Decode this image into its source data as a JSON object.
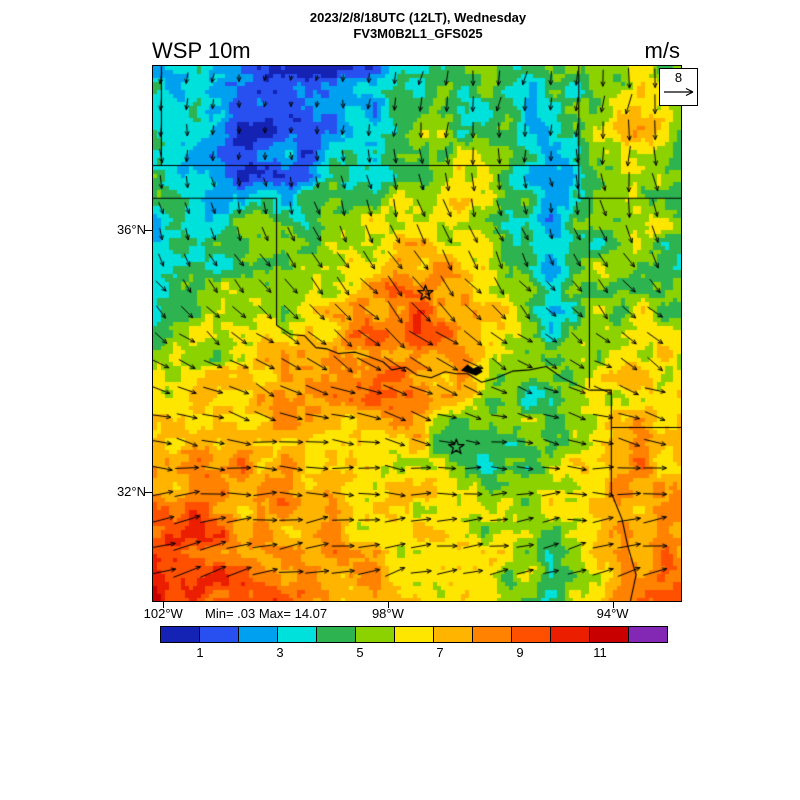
{
  "header": {
    "title_line1": "2023/2/8/18UTC (12LT), Wednesday",
    "title_line2": "FV3M0B2L1_GFS025",
    "field_label": "WSP 10m",
    "units_label": "m/s"
  },
  "plot": {
    "reference_arrow_label": "8"
  },
  "stats_label": "Min= .03 Max= 14.07",
  "axes": {
    "lat_ticks": [
      {
        "label": "36°N",
        "lat": 36
      },
      {
        "label": "32°N",
        "lat": 32
      }
    ],
    "lon_ticks": [
      {
        "label": "102°W",
        "lon": -102
      },
      {
        "label": "98°W",
        "lon": -98
      },
      {
        "label": "94°W",
        "lon": -94
      }
    ]
  },
  "colorbar": {
    "tick_labels": [
      "1",
      "3",
      "5",
      "7",
      "9",
      "11"
    ]
  },
  "chart_data": {
    "type": "heatmap",
    "variable": "wind speed at 10 m",
    "units": "m/s",
    "valid_time": "2023/2/8/18UTC (12LT), Wednesday",
    "model": "FV3M0B2L1_GFS025",
    "min": 0.03,
    "max": 14.07,
    "reference_vector_ms": 8,
    "lon_range": [
      -102.2,
      -92.8
    ],
    "lat_range": [
      30.35,
      38.52
    ],
    "contour_levels": [
      1,
      2,
      3,
      4,
      5,
      6,
      7,
      8,
      9,
      10,
      11,
      12
    ],
    "colors": [
      "#1423b4",
      "#2850f0",
      "#00a0f0",
      "#00e1dc",
      "#2db450",
      "#8cd200",
      "#ffe600",
      "#ffb400",
      "#ff8200",
      "#ff5000",
      "#eb1e00",
      "#c80000",
      "#8228b4"
    ],
    "speed_grid": {
      "values": [
        [
          3.3,
          3.0,
          1.5,
          0.6,
          0.8,
          2.5,
          4.3,
          4.5,
          4.6,
          4.4,
          4.6,
          7.0,
          4.8
        ],
        [
          4.2,
          3.2,
          1.4,
          0.7,
          1.8,
          3.2,
          4.5,
          4.7,
          4.4,
          3.2,
          4.7,
          7.4,
          4.8
        ],
        [
          4.4,
          3.2,
          1.6,
          2.2,
          3.3,
          4.2,
          4.8,
          6.2,
          4.7,
          2.3,
          5.3,
          6.8,
          4.7
        ],
        [
          3.3,
          3.4,
          4.2,
          4.5,
          4.8,
          6.2,
          6.6,
          6.3,
          4.8,
          2.6,
          4.8,
          6.4,
          4.7
        ],
        [
          4.3,
          4.6,
          4.8,
          6.0,
          6.6,
          7.6,
          8.6,
          7.6,
          6.0,
          3.3,
          4.8,
          5.6,
          4.8
        ],
        [
          4.7,
          5.8,
          6.0,
          6.5,
          7.6,
          9.2,
          9.6,
          8.2,
          6.2,
          4.2,
          4.8,
          6.2,
          6.0
        ],
        [
          6.0,
          6.4,
          6.8,
          7.5,
          8.2,
          9.2,
          8.2,
          7.6,
          5.0,
          4.5,
          6.2,
          7.0,
          6.6
        ],
        [
          6.8,
          7.4,
          8.0,
          8.0,
          7.2,
          7.0,
          6.6,
          4.0,
          4.8,
          5.0,
          6.6,
          7.6,
          7.0
        ],
        [
          8.2,
          8.6,
          8.0,
          7.6,
          7.0,
          7.0,
          6.6,
          6.2,
          4.8,
          6.0,
          6.6,
          8.0,
          7.6
        ],
        [
          10.2,
          9.6,
          8.6,
          8.0,
          7.6,
          7.0,
          6.6,
          6.6,
          6.0,
          4.8,
          6.6,
          8.0,
          8.2
        ],
        [
          11.2,
          10.2,
          9.2,
          8.6,
          8.0,
          7.6,
          7.0,
          6.6,
          6.0,
          4.8,
          7.0,
          8.6,
          8.2
        ]
      ]
    },
    "direction_to_deg_rows": [
      190,
      185,
      175,
      160,
      145,
      130,
      115,
      100,
      88,
      80,
      72
    ],
    "borders": [
      [
        [
          -102.2,
          37
        ],
        [
          -94.62,
          37
        ]
      ],
      [
        [
          -94.62,
          38.52
        ],
        [
          -94.62,
          37
        ]
      ],
      [
        [
          -94.62,
          37
        ],
        [
          -94.62,
          36.5
        ],
        [
          -94.43,
          36.5
        ],
        [
          -94.43,
          33.6
        ]
      ],
      [
        [
          -94.62,
          36.5
        ],
        [
          -92.8,
          36.5
        ]
      ],
      [
        [
          -102.2,
          36.5
        ],
        [
          -100,
          36.5
        ]
      ],
      [
        [
          -100,
          36.5
        ],
        [
          -100,
          34.56
        ]
      ],
      [
        [
          -100,
          34.56
        ],
        [
          -99.75,
          34.42
        ],
        [
          -99.5,
          34.4
        ],
        [
          -99.3,
          34.22
        ],
        [
          -99.1,
          34.2
        ],
        [
          -98.9,
          34.13
        ],
        [
          -98.6,
          34.15
        ],
        [
          -98.35,
          34.08
        ],
        [
          -98.1,
          34.0
        ],
        [
          -97.95,
          33.88
        ],
        [
          -97.7,
          33.92
        ],
        [
          -97.5,
          33.8
        ],
        [
          -97.25,
          33.76
        ],
        [
          -97.0,
          33.85
        ],
        [
          -96.8,
          33.82
        ],
        [
          -96.6,
          33.82
        ],
        [
          -96.35,
          33.69
        ],
        [
          -96.1,
          33.75
        ],
        [
          -95.8,
          33.86
        ],
        [
          -95.5,
          33.88
        ],
        [
          -95.2,
          33.93
        ],
        [
          -94.9,
          33.75
        ],
        [
          -94.65,
          33.65
        ],
        [
          -94.43,
          33.57
        ]
      ],
      [
        [
          -94.43,
          33.57
        ],
        [
          -94.04,
          33.57
        ],
        [
          -94.04,
          32.0
        ],
        [
          -93.85,
          31.6
        ],
        [
          -93.75,
          31.2
        ],
        [
          -93.6,
          30.75
        ],
        [
          -93.7,
          30.35
        ]
      ],
      [
        [
          -94.04,
          33
        ],
        [
          -92.8,
          33
        ]
      ],
      [
        [
          -102.05,
          38.52
        ],
        [
          -102.05,
          37
        ]
      ]
    ],
    "markers": [
      {
        "shape": "star",
        "lon": -97.35,
        "lat": 35.05
      },
      {
        "shape": "star",
        "lon": -96.8,
        "lat": 32.7
      }
    ],
    "lake": [
      [
        -96.72,
        33.87
      ],
      [
        -96.6,
        33.96
      ],
      [
        -96.5,
        33.9
      ],
      [
        -96.4,
        33.94
      ],
      [
        -96.33,
        33.85
      ],
      [
        -96.45,
        33.79
      ],
      [
        -96.58,
        33.83
      ]
    ]
  }
}
